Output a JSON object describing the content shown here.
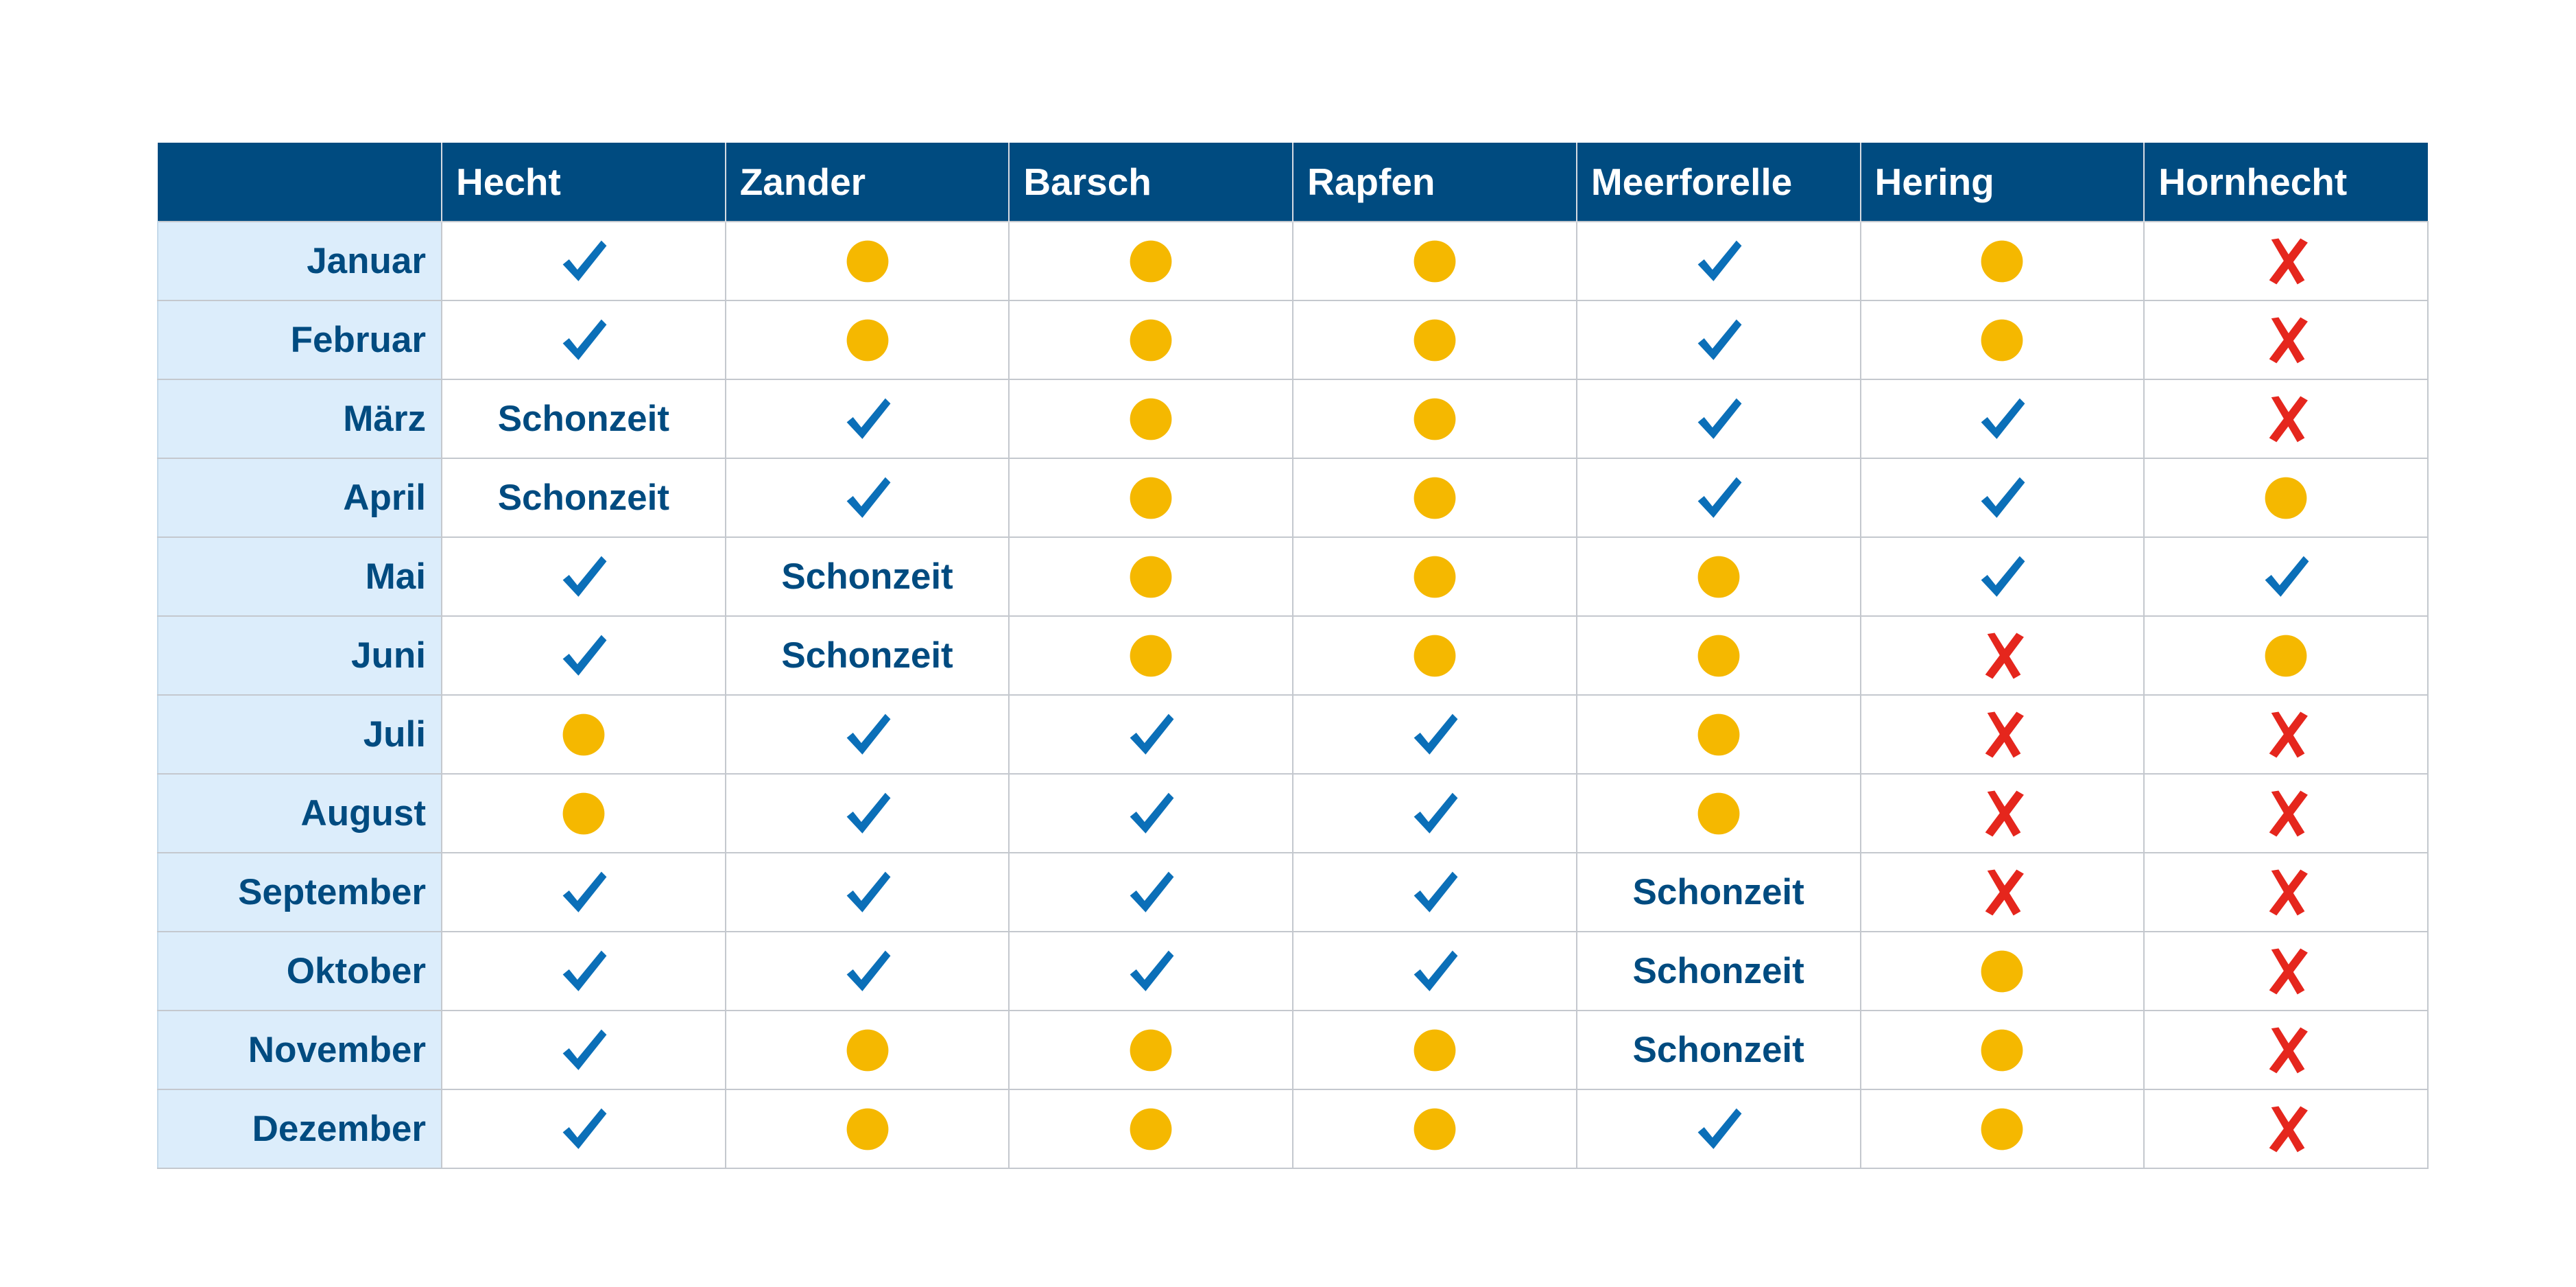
{
  "chart_data": {
    "type": "table",
    "columns": [
      "",
      "Hecht",
      "Zander",
      "Barsch",
      "Rapfen",
      "Meerforelle",
      "Hering",
      "Hornhecht"
    ],
    "rows": [
      {
        "month": "Januar",
        "cells": [
          "check",
          "dot",
          "dot",
          "dot",
          "check",
          "dot",
          "cross"
        ]
      },
      {
        "month": "Februar",
        "cells": [
          "check",
          "dot",
          "dot",
          "dot",
          "check",
          "dot",
          "cross"
        ]
      },
      {
        "month": "März",
        "cells": [
          "Schonzeit",
          "check",
          "dot",
          "dot",
          "check",
          "check",
          "cross"
        ]
      },
      {
        "month": "April",
        "cells": [
          "Schonzeit",
          "check",
          "dot",
          "dot",
          "check",
          "check",
          "dot"
        ]
      },
      {
        "month": "Mai",
        "cells": [
          "check",
          "Schonzeit",
          "dot",
          "dot",
          "dot",
          "check",
          "check"
        ]
      },
      {
        "month": "Juni",
        "cells": [
          "check",
          "Schonzeit",
          "dot",
          "dot",
          "dot",
          "cross",
          "dot"
        ]
      },
      {
        "month": "Juli",
        "cells": [
          "dot",
          "check",
          "check",
          "check",
          "dot",
          "cross",
          "cross"
        ]
      },
      {
        "month": "August",
        "cells": [
          "dot",
          "check",
          "check",
          "check",
          "dot",
          "cross",
          "cross"
        ]
      },
      {
        "month": "September",
        "cells": [
          "check",
          "check",
          "check",
          "check",
          "Schonzeit",
          "cross",
          "cross"
        ]
      },
      {
        "month": "Oktober",
        "cells": [
          "check",
          "check",
          "check",
          "check",
          "Schonzeit",
          "dot",
          "cross"
        ]
      },
      {
        "month": "November",
        "cells": [
          "check",
          "dot",
          "dot",
          "dot",
          "Schonzeit",
          "dot",
          "cross"
        ]
      },
      {
        "month": "Dezember",
        "cells": [
          "check",
          "dot",
          "dot",
          "dot",
          "check",
          "dot",
          "cross"
        ]
      }
    ]
  },
  "icons": {
    "check": "checkmark-icon",
    "dot": "yellow-circle-icon",
    "cross": "red-x-icon"
  },
  "colors": {
    "header_bg": "#004b80",
    "header_text": "#ffffff",
    "month_bg": "#dcedfb",
    "text": "#004b80",
    "check": "#0b6fb8",
    "dot": "#f5b800",
    "cross": "#e5261d",
    "grid": "#c4c8ce"
  }
}
